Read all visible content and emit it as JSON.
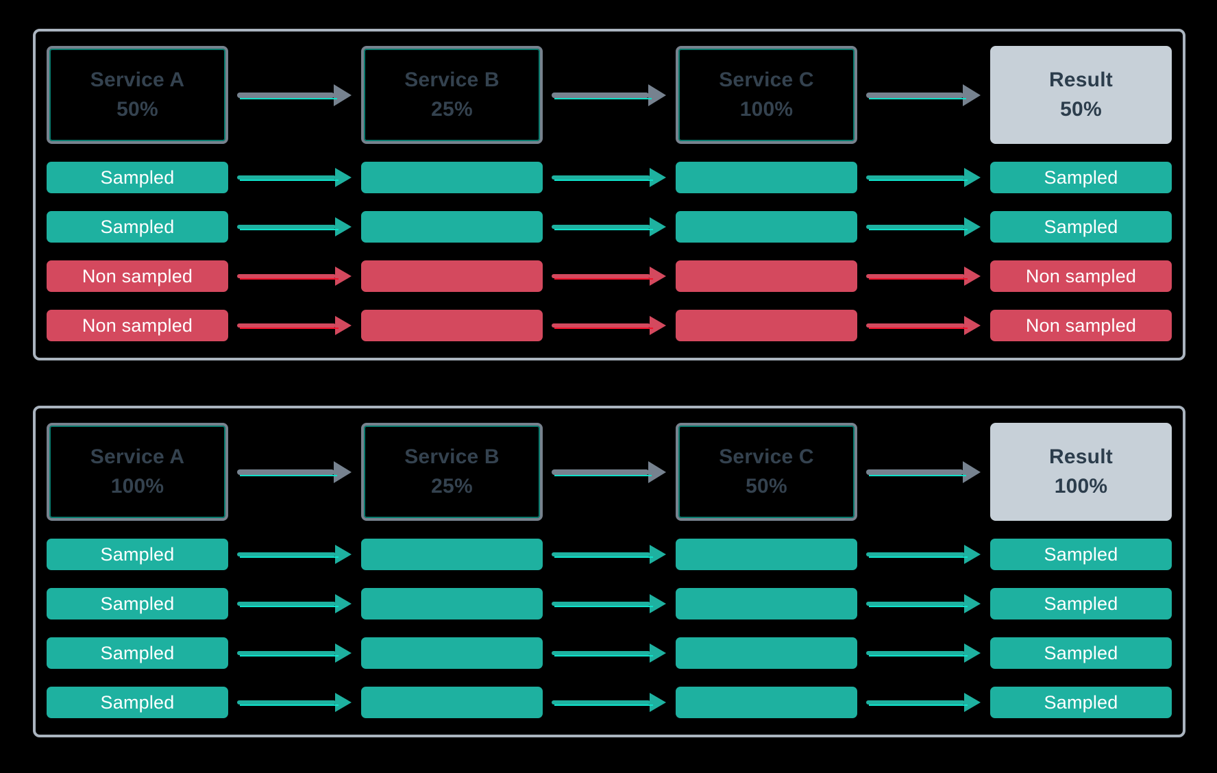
{
  "colors": {
    "background": "#000000",
    "panel_border": "#aab4bf",
    "service_box_border": "#77828e",
    "service_box_text": "#34424f",
    "service_box_inner_accent": "#10e0c8",
    "result_box_bg": "#c7d0d8",
    "result_box_text": "#2c3d4c",
    "sampled": "#1eb1a0",
    "non_sampled": "#d4495e",
    "arrow_gray": "#76828f",
    "arrow_accent_cyan": "#10e0c8",
    "arrow_accent_red": "#f2122b",
    "bar_text": "#ffffff"
  },
  "panels": [
    {
      "name": "scenario-1",
      "nodes": [
        {
          "kind": "service",
          "title": "Service A",
          "value": "50%"
        },
        {
          "kind": "service",
          "title": "Service B",
          "value": "25%"
        },
        {
          "kind": "service",
          "title": "Service C",
          "value": "100%"
        },
        {
          "kind": "result",
          "title": "Result",
          "value": "50%"
        }
      ],
      "traces": [
        {
          "status": "sampled",
          "label": "Sampled"
        },
        {
          "status": "sampled",
          "label": "Sampled"
        },
        {
          "status": "non-sampled",
          "label": "Non sampled"
        },
        {
          "status": "non-sampled",
          "label": "Non sampled"
        }
      ]
    },
    {
      "name": "scenario-2",
      "nodes": [
        {
          "kind": "service",
          "title": "Service A",
          "value": "100%"
        },
        {
          "kind": "service",
          "title": "Service B",
          "value": "25%"
        },
        {
          "kind": "service",
          "title": "Service C",
          "value": "50%"
        },
        {
          "kind": "result",
          "title": "Result",
          "value": "100%"
        }
      ],
      "traces": [
        {
          "status": "sampled",
          "label": "Sampled"
        },
        {
          "status": "sampled",
          "label": "Sampled"
        },
        {
          "status": "sampled",
          "label": "Sampled"
        },
        {
          "status": "sampled",
          "label": "Sampled"
        }
      ]
    }
  ]
}
